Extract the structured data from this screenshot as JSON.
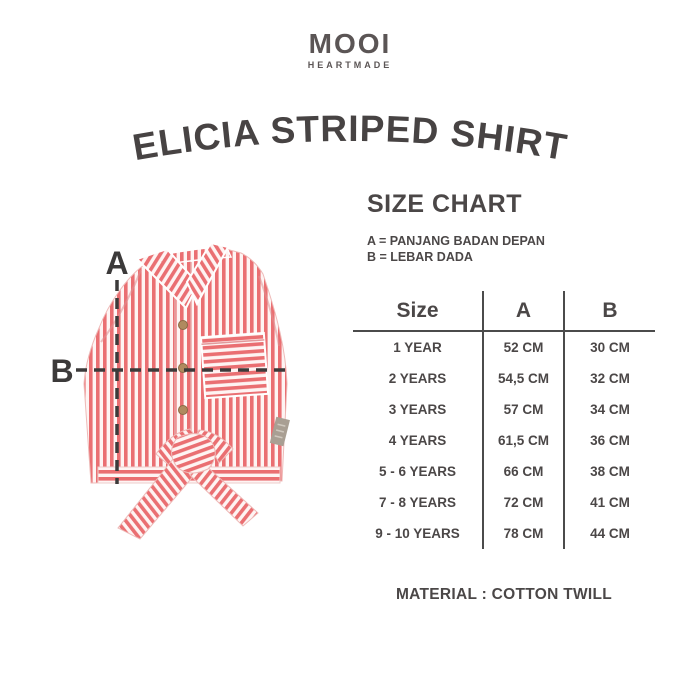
{
  "brand": {
    "name": "MOOI",
    "tagline": "HEARTMADE"
  },
  "title": "ELICIA STRIPED SHIRT",
  "size_chart": {
    "heading": "SIZE CHART",
    "legend_a": "A = PANJANG BADAN DEPAN",
    "legend_b": "B = LEBAR DADA"
  },
  "diagram": {
    "label_a": "A",
    "label_b": "B"
  },
  "table": {
    "headers": [
      "Size",
      "A",
      "B"
    ],
    "rows": [
      [
        "1 YEAR",
        "52 CM",
        "30 CM"
      ],
      [
        "2 YEARS",
        "54,5 CM",
        "32 CM"
      ],
      [
        "3 YEARS",
        "57 CM",
        "34 CM"
      ],
      [
        "4 YEARS",
        "61,5 CM",
        "36 CM"
      ],
      [
        "5 - 6 YEARS",
        "66 CM",
        "38 CM"
      ],
      [
        "7 - 8 YEARS",
        "72 CM",
        "41 CM"
      ],
      [
        "9 - 10 YEARS",
        "78 CM",
        "44 CM"
      ]
    ]
  },
  "material": "MATERIAL : COTTON TWILL",
  "colors": {
    "text": "#4b4747",
    "stripe_red": "#ea6f72",
    "stripe_bg": "#fef4f3",
    "dash_line": "#3c3a3a",
    "button_brown": "#b08a5f",
    "tag_gray": "#a99f93"
  }
}
